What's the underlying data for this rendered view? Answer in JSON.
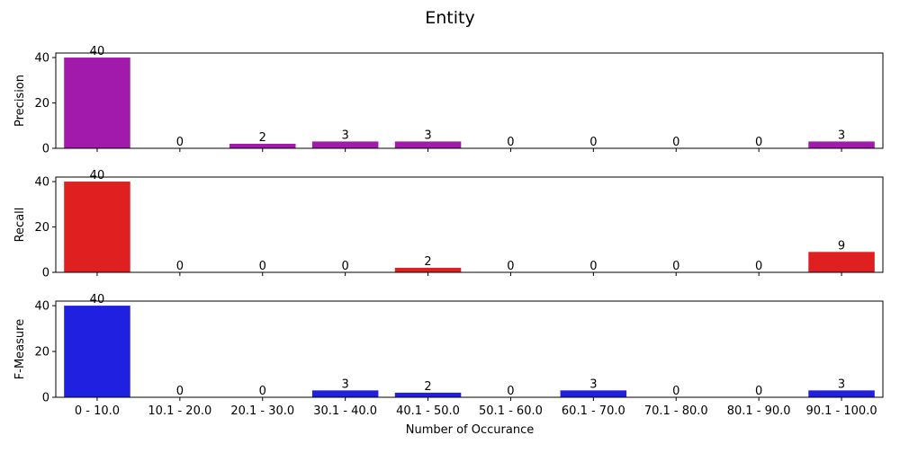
{
  "chart_data": {
    "type": "bar",
    "title": "Entity",
    "xlabel": "Number of Occurance",
    "categories": [
      "0 - 10.0",
      "10.1 - 20.0",
      "20.1 - 30.0",
      "30.1 - 40.0",
      "40.1 - 50.0",
      "50.1 - 60.0",
      "60.1 - 70.0",
      "70.1 - 80.0",
      "80.1 - 90.0",
      "90.1 - 100.0"
    ],
    "ylim": [
      0,
      42
    ],
    "yticks": [
      0,
      20,
      40
    ],
    "grid": false,
    "legend": "none",
    "subplots": [
      {
        "ylabel": "Precision",
        "color": "#a21aab",
        "values": [
          40,
          0,
          2,
          3,
          3,
          0,
          0,
          0,
          0,
          3
        ]
      },
      {
        "ylabel": "Recall",
        "color": "#e02020",
        "values": [
          40,
          0,
          0,
          0,
          2,
          0,
          0,
          0,
          0,
          9
        ]
      },
      {
        "ylabel": "F-Measure",
        "color": "#2020e0",
        "values": [
          40,
          0,
          0,
          3,
          2,
          0,
          3,
          0,
          0,
          3
        ]
      }
    ]
  }
}
